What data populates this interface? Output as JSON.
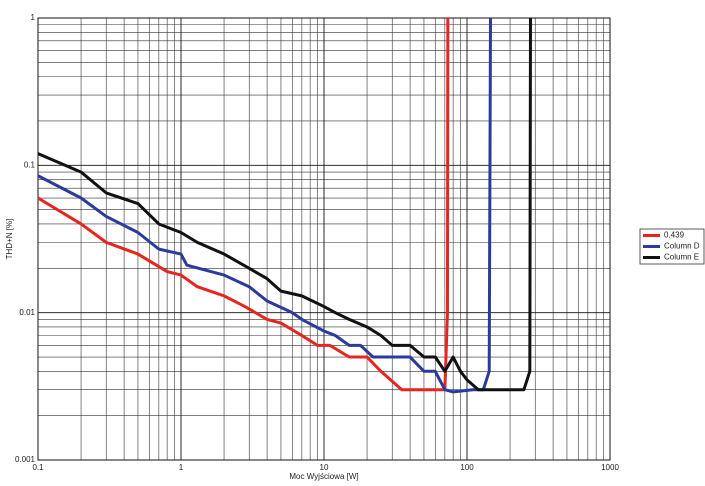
{
  "chart_data": {
    "type": "line",
    "xlabel": "Moc Wyjściowa [W]",
    "ylabel": "THD+N [%]",
    "xscale": "log",
    "yscale": "log",
    "xlim": [
      0.1,
      1000
    ],
    "xticks": [
      0.1,
      1,
      10,
      100,
      1000
    ],
    "ylim": [
      0.001,
      1
    ],
    "yticks": [
      0.001,
      0.01,
      0.1,
      1
    ],
    "grid": true,
    "minor_grid": true,
    "legend": "right",
    "series": [
      {
        "name": "0.439",
        "color": "#e8241f",
        "x": [
          0.1,
          0.2,
          0.3,
          0.5,
          0.8,
          1,
          1.3,
          2,
          2.8,
          4,
          5,
          7,
          9,
          11,
          15,
          20,
          25,
          35,
          60,
          70,
          73,
          73.5
        ],
        "values": [
          0.06,
          0.04,
          0.03,
          0.025,
          0.019,
          0.018,
          0.015,
          0.013,
          0.011,
          0.009,
          0.0085,
          0.007,
          0.006,
          0.006,
          0.005,
          0.005,
          0.004,
          0.003,
          0.003,
          0.003,
          0.01,
          1
        ]
      },
      {
        "name": "Column D",
        "color": "#2b3a9c",
        "x": [
          0.1,
          0.2,
          0.3,
          0.5,
          0.7,
          1,
          1.1,
          2,
          3,
          4,
          6,
          7,
          10,
          12,
          15,
          18,
          22,
          40,
          50,
          60,
          70,
          80,
          110,
          130,
          143,
          146
        ],
        "values": [
          0.085,
          0.06,
          0.045,
          0.035,
          0.027,
          0.025,
          0.021,
          0.018,
          0.015,
          0.012,
          0.01,
          0.009,
          0.0075,
          0.007,
          0.006,
          0.006,
          0.005,
          0.005,
          0.004,
          0.004,
          0.003,
          0.0029,
          0.003,
          0.003,
          0.004,
          1
        ]
      },
      {
        "name": "Column E",
        "color": "#111111",
        "x": [
          0.1,
          0.2,
          0.3,
          0.5,
          0.7,
          1,
          1.3,
          2,
          3,
          4,
          5,
          7,
          10,
          12,
          15,
          20,
          25,
          30,
          40,
          50,
          60,
          70,
          80,
          90,
          100,
          120,
          200,
          250,
          275,
          278
        ],
        "values": [
          0.12,
          0.09,
          0.065,
          0.055,
          0.04,
          0.035,
          0.03,
          0.025,
          0.02,
          0.017,
          0.014,
          0.013,
          0.011,
          0.01,
          0.009,
          0.008,
          0.007,
          0.006,
          0.006,
          0.005,
          0.005,
          0.004,
          0.005,
          0.004,
          0.0035,
          0.003,
          0.003,
          0.003,
          0.004,
          1
        ]
      }
    ]
  }
}
